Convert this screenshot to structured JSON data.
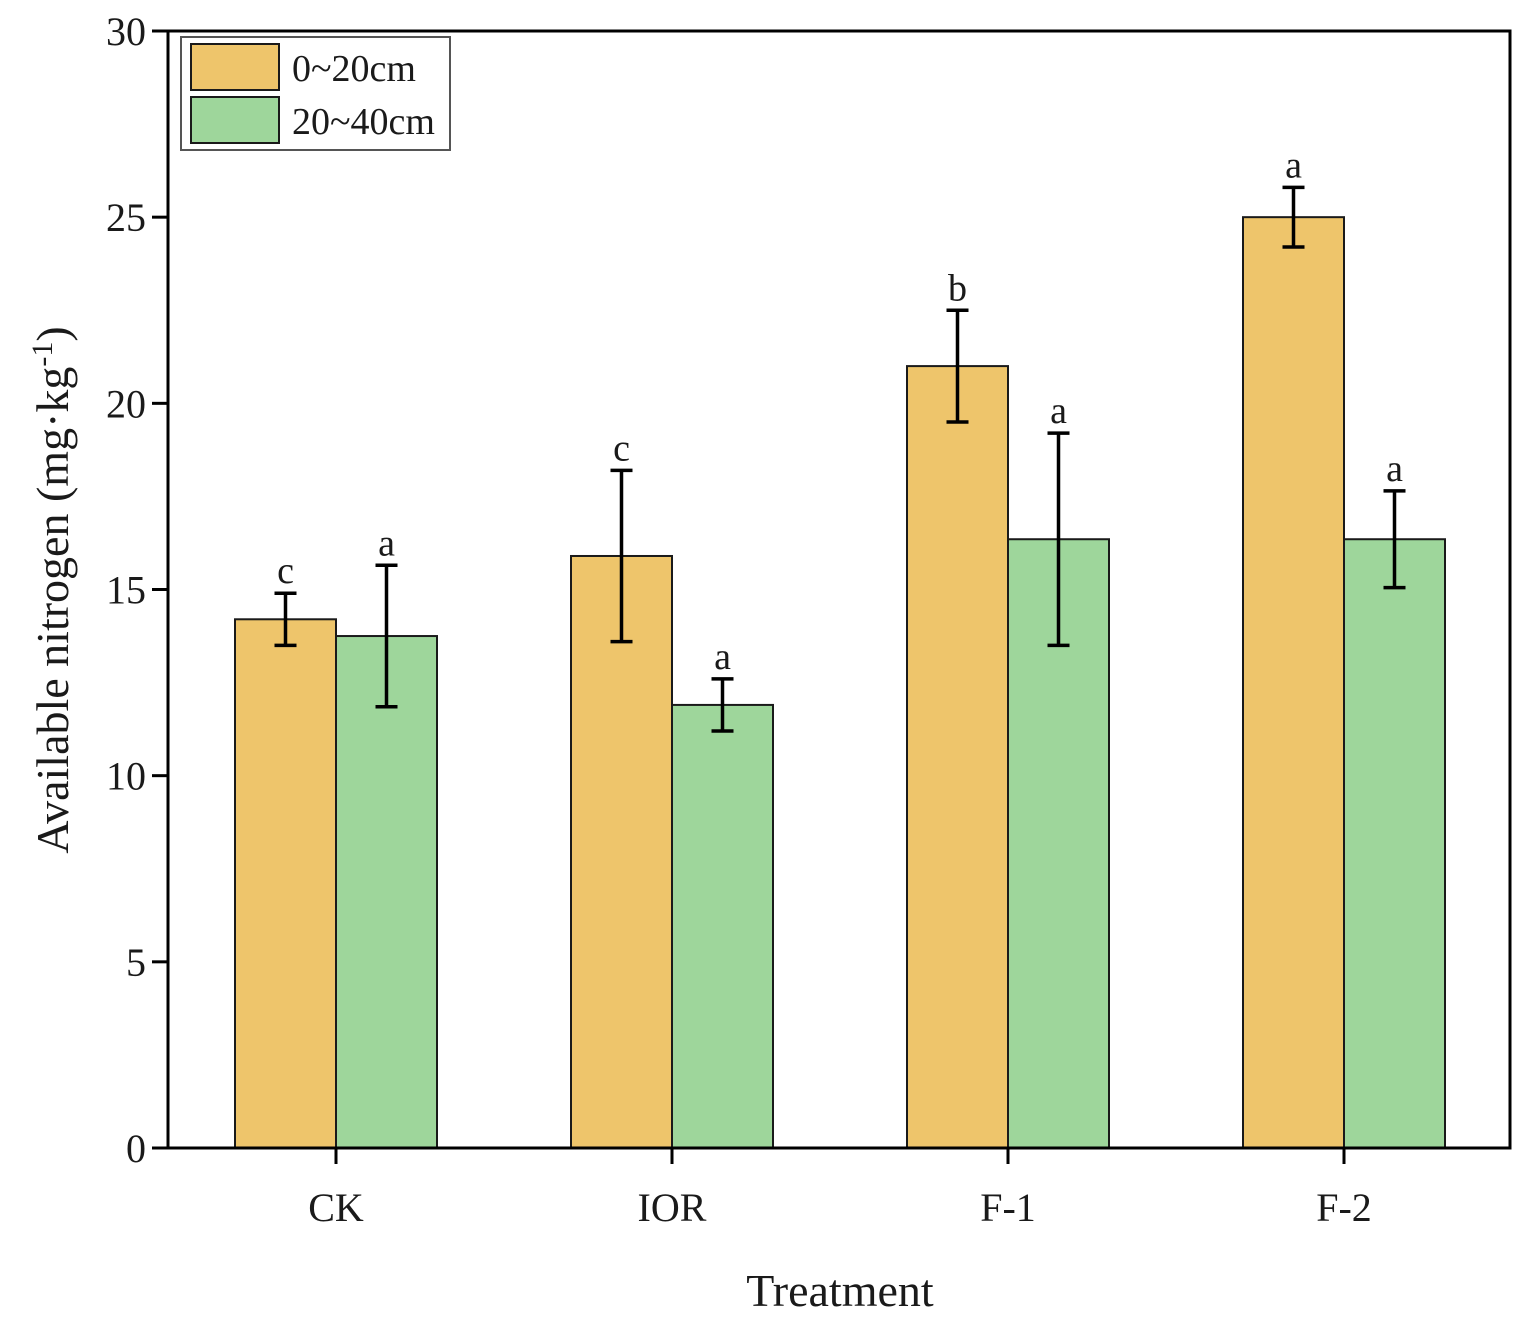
{
  "chart_data": {
    "type": "bar",
    "title": "",
    "xlabel": "Treatment",
    "ylabel": "Available nitrogen (mg·kg",
    "ylabel_sup": "-1",
    "ylabel_close": ")",
    "ylim": [
      0,
      30
    ],
    "yticks": [
      0,
      5,
      10,
      15,
      20,
      25,
      30
    ],
    "categories": [
      "CK",
      "IOR",
      "F-1",
      "F-2"
    ],
    "legend_position": "top-left",
    "series": [
      {
        "name": "0~20cm",
        "color": "#EEC56B",
        "values": [
          14.2,
          15.9,
          21.0,
          25.0
        ],
        "errors": [
          0.7,
          2.3,
          1.5,
          0.8
        ],
        "letters": [
          "c",
          "c",
          "b",
          "a"
        ]
      },
      {
        "name": "20~40cm",
        "color": "#9ED69B",
        "values": [
          13.75,
          11.9,
          16.35,
          16.35
        ],
        "errors": [
          1.9,
          0.7,
          2.85,
          1.3
        ],
        "letters": [
          "a",
          "a",
          "a",
          "a"
        ]
      }
    ]
  }
}
